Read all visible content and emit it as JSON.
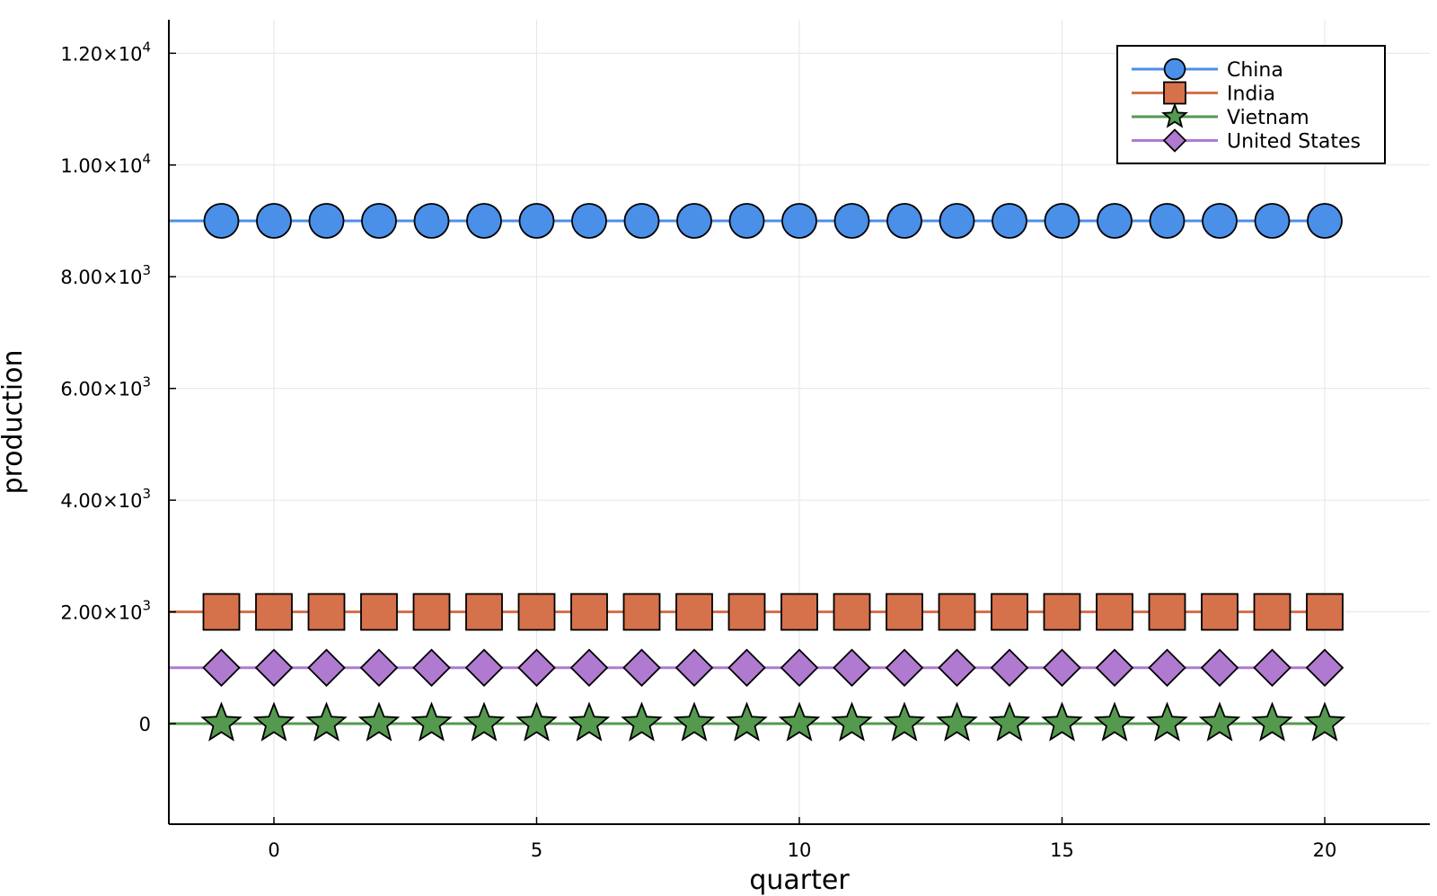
{
  "chart_data": {
    "type": "line",
    "xlabel": "quarter",
    "ylabel": "production",
    "xlim": [
      -2,
      22
    ],
    "ylim": [
      -1800,
      12600
    ],
    "xticks": [
      0,
      5,
      10,
      15,
      20
    ],
    "xtick_labels": [
      "0",
      "5",
      "10",
      "15",
      "20"
    ],
    "yticks": [
      0,
      2000,
      4000,
      6000,
      8000,
      10000,
      12000
    ],
    "ytick_labels": [
      {
        "mantissa": "0",
        "exp": ""
      },
      {
        "mantissa": "2.00×10",
        "exp": "3"
      },
      {
        "mantissa": "4.00×10",
        "exp": "3"
      },
      {
        "mantissa": "6.00×10",
        "exp": "3"
      },
      {
        "mantissa": "8.00×10",
        "exp": "3"
      },
      {
        "mantissa": "1.00×10",
        "exp": "4"
      },
      {
        "mantissa": "1.20×10",
        "exp": "4"
      }
    ],
    "grid": true,
    "legend_position": "top-right",
    "x": [
      -1,
      0,
      1,
      2,
      3,
      4,
      5,
      6,
      7,
      8,
      9,
      10,
      11,
      12,
      13,
      14,
      15,
      16,
      17,
      18,
      19,
      20
    ],
    "series": [
      {
        "name": "China",
        "marker": "circle",
        "color": "#4a8fe8",
        "values": [
          9000,
          9000,
          9000,
          9000,
          9000,
          9000,
          9000,
          9000,
          9000,
          9000,
          9000,
          9000,
          9000,
          9000,
          9000,
          9000,
          9000,
          9000,
          9000,
          9000,
          9000,
          9000
        ]
      },
      {
        "name": "India",
        "marker": "square",
        "color": "#d5714b",
        "values": [
          2000,
          2000,
          2000,
          2000,
          2000,
          2000,
          2000,
          2000,
          2000,
          2000,
          2000,
          2000,
          2000,
          2000,
          2000,
          2000,
          2000,
          2000,
          2000,
          2000,
          2000,
          2000
        ]
      },
      {
        "name": "Vietnam",
        "marker": "star",
        "color": "#55994f",
        "values": [
          0,
          0,
          0,
          0,
          0,
          0,
          0,
          0,
          0,
          0,
          0,
          0,
          0,
          0,
          0,
          0,
          0,
          0,
          0,
          0,
          0,
          0
        ]
      },
      {
        "name": "United States",
        "marker": "diamond",
        "color": "#b07ad0",
        "values": [
          1000,
          1000,
          1000,
          1000,
          1000,
          1000,
          1000,
          1000,
          1000,
          1000,
          1000,
          1000,
          1000,
          1000,
          1000,
          1000,
          1000,
          1000,
          1000,
          1000,
          1000,
          1000
        ]
      }
    ]
  }
}
